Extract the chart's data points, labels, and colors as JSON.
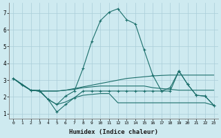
{
  "xlabel": "Humidex (Indice chaleur)",
  "background_color": "#ceeaf0",
  "grid_color": "#aacdd8",
  "line_color": "#1a6e6a",
  "xlim": [
    -0.5,
    23.5
  ],
  "ylim": [
    0.7,
    7.6
  ],
  "yticks": [
    1,
    2,
    3,
    4,
    5,
    6,
    7
  ],
  "xticks": [
    0,
    1,
    2,
    3,
    4,
    5,
    6,
    7,
    8,
    9,
    10,
    11,
    12,
    13,
    14,
    15,
    16,
    17,
    18,
    19,
    20,
    21,
    22,
    23
  ],
  "series": [
    {
      "x": [
        0,
        1,
        2,
        3,
        4,
        5,
        6,
        7,
        8,
        9,
        10,
        11,
        12,
        13,
        14,
        15,
        16,
        17,
        18,
        19,
        20,
        21,
        22,
        23
      ],
      "y": [
        3.1,
        2.7,
        2.4,
        2.4,
        1.85,
        1.55,
        2.05,
        2.35,
        3.7,
        5.3,
        6.55,
        7.05,
        7.25,
        6.6,
        6.35,
        4.8,
        3.3,
        2.35,
        2.55,
        3.55,
        2.75,
        2.1,
        2.05,
        1.5
      ],
      "has_markers": true
    },
    {
      "x": [
        0,
        2,
        3,
        4,
        5,
        6,
        7,
        8,
        9,
        10,
        11,
        12,
        13,
        14,
        15,
        16,
        17,
        18,
        19,
        20,
        21,
        22,
        23
      ],
      "y": [
        3.1,
        2.4,
        2.35,
        2.35,
        2.35,
        2.4,
        2.5,
        2.6,
        2.7,
        2.8,
        2.9,
        3.0,
        3.1,
        3.15,
        3.2,
        3.25,
        3.28,
        3.3,
        3.3,
        3.3,
        3.3,
        3.3,
        3.3
      ],
      "has_markers": false
    },
    {
      "x": [
        0,
        2,
        3,
        4,
        5,
        6,
        7,
        8,
        9,
        10,
        11,
        12,
        13,
        14,
        15,
        16,
        17,
        18,
        19,
        20,
        21,
        22,
        23
      ],
      "y": [
        3.1,
        2.4,
        2.35,
        2.35,
        2.35,
        2.4,
        2.45,
        2.55,
        2.6,
        2.65,
        2.65,
        2.65,
        2.65,
        2.65,
        2.65,
        2.55,
        2.5,
        2.45,
        2.4,
        2.4,
        2.4,
        2.4,
        2.4
      ],
      "has_markers": false
    },
    {
      "x": [
        0,
        2,
        3,
        4,
        5,
        6,
        7,
        8,
        9,
        10,
        11,
        12,
        13,
        14,
        15,
        16,
        17,
        18,
        19,
        20,
        21,
        22,
        23
      ],
      "y": [
        3.1,
        2.4,
        2.35,
        1.85,
        1.55,
        1.7,
        1.95,
        2.1,
        2.15,
        2.2,
        2.2,
        1.65,
        1.65,
        1.65,
        1.65,
        1.65,
        1.65,
        1.65,
        1.65,
        1.65,
        1.65,
        1.65,
        1.5
      ],
      "has_markers": false
    },
    {
      "x": [
        0,
        2,
        3,
        4,
        5,
        6,
        7,
        8,
        9,
        10,
        11,
        12,
        13,
        14,
        15,
        16,
        17,
        18,
        19,
        20,
        21,
        22,
        23
      ],
      "y": [
        3.1,
        2.4,
        2.35,
        1.85,
        1.1,
        1.55,
        1.95,
        2.35,
        2.35,
        2.35,
        2.35,
        2.35,
        2.35,
        2.35,
        2.35,
        2.35,
        2.35,
        2.35,
        3.55,
        2.75,
        2.1,
        2.05,
        1.5
      ],
      "has_markers": true
    }
  ]
}
